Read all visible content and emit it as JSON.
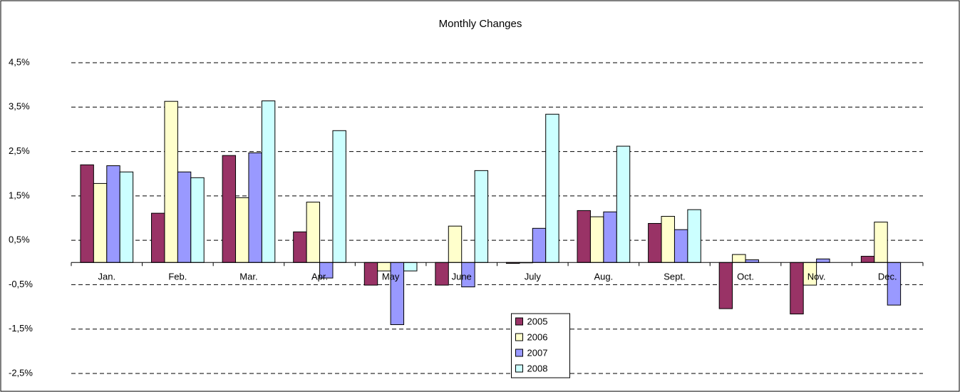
{
  "chart_data": {
    "type": "bar",
    "title": "Monthly Changes",
    "categories": [
      "Jan.",
      "Feb.",
      "Mar.",
      "Apr.",
      "May",
      "June",
      "July",
      "Aug.",
      "Sept.",
      "Oct.",
      "Nov.",
      "Dec."
    ],
    "series": [
      {
        "name": "2005",
        "color": "#993366",
        "values": [
          2.2,
          1.11,
          2.41,
          0.69,
          -0.51,
          -0.51,
          -0.02,
          1.17,
          0.88,
          -1.04,
          -1.16,
          0.14
        ]
      },
      {
        "name": "2006",
        "color": "#FFFFCC",
        "values": [
          1.78,
          3.63,
          1.46,
          1.36,
          -0.19,
          0.82,
          0,
          1.03,
          1.04,
          0.18,
          -0.51,
          0.91
        ]
      },
      {
        "name": "2007",
        "color": "#9999FF",
        "values": [
          2.18,
          2.04,
          2.47,
          -0.35,
          -1.4,
          -0.55,
          0.77,
          1.14,
          0.74,
          0.06,
          0.08,
          -0.96
        ]
      },
      {
        "name": "2008",
        "color": "#CCFFFF",
        "values": [
          2.04,
          1.91,
          3.64,
          2.97,
          -0.19,
          2.07,
          3.34,
          2.62,
          1.19,
          null,
          null,
          null
        ]
      }
    ],
    "ylim": [
      -2.5,
      4.5
    ],
    "yticks": [
      {
        "value": -2.5,
        "label": "-2,5%"
      },
      {
        "value": -1.5,
        "label": "-1,5%"
      },
      {
        "value": -0.5,
        "label": "-0,5%"
      },
      {
        "value": 0.5,
        "label": "0,5%"
      },
      {
        "value": 1.5,
        "label": "1,5%"
      },
      {
        "value": 2.5,
        "label": "2,5%"
      },
      {
        "value": 3.5,
        "label": "3,5%"
      },
      {
        "value": 4.5,
        "label": "4,5%"
      }
    ],
    "grid": true,
    "legend_position": "bottom"
  }
}
